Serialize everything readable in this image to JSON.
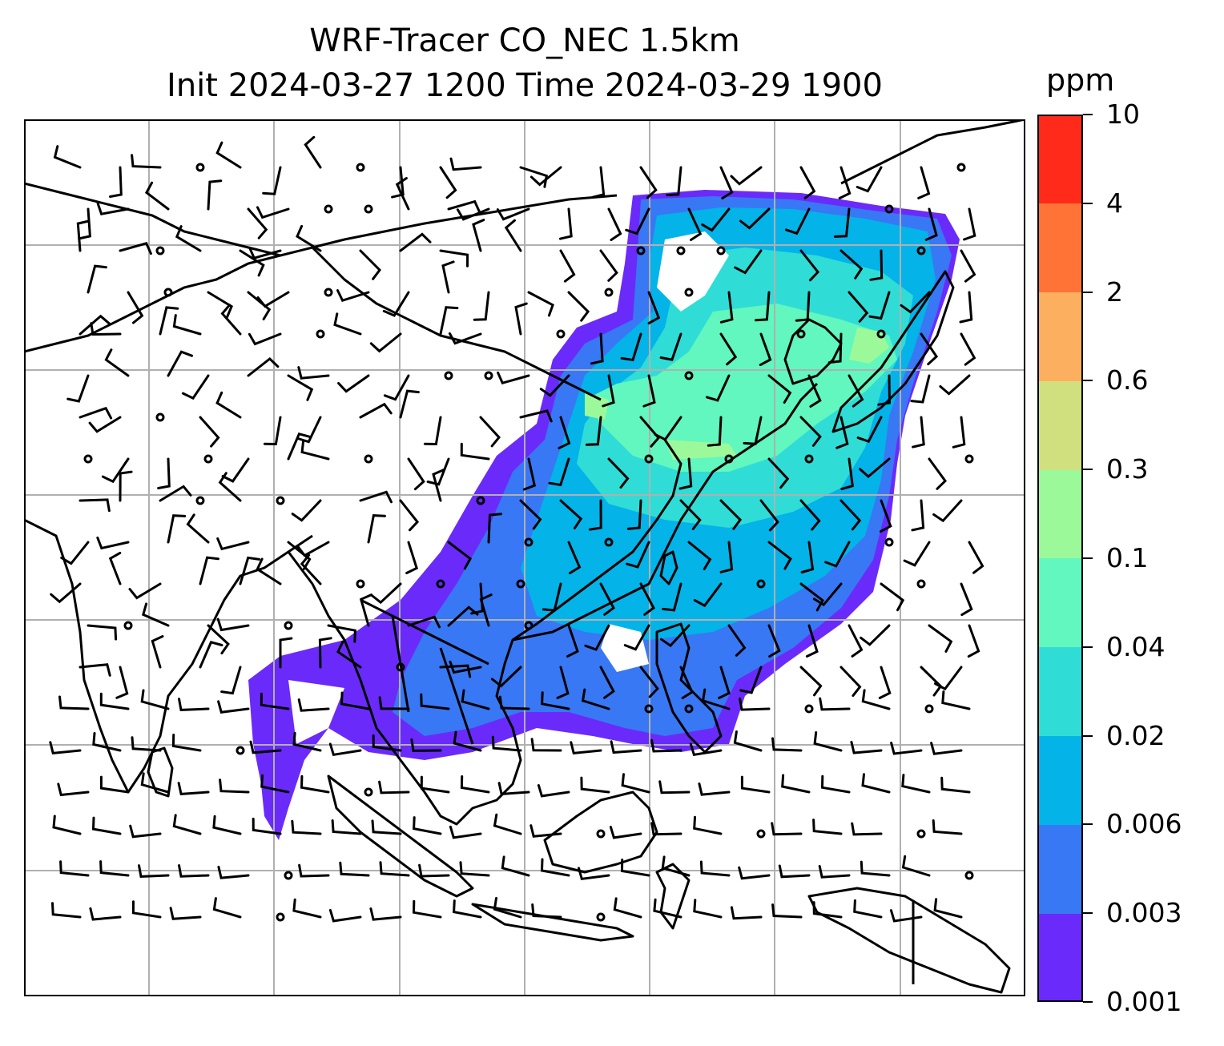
{
  "title": {
    "line1": "WRF-Tracer CO_NEC 1.5km",
    "line2": "Init 2024-03-27 1200 Time 2024-03-29 1900"
  },
  "colorbar": {
    "unit": "ppm",
    "levels": [
      "0.001",
      "0.003",
      "0.006",
      "0.02",
      "0.04",
      "0.1",
      "0.3",
      "0.6",
      "2",
      "4",
      "10"
    ],
    "colors": [
      "#6a2bfa",
      "#3878f4",
      "#04b3e8",
      "#2fddd6",
      "#61f7be",
      "#9cf99a",
      "#d0e07e",
      "#fcaf5e",
      "#ff7337",
      "#ff2a19"
    ]
  },
  "map": {
    "variable": "CO_NEC tracer",
    "coastline_color": "#000000",
    "grid_color": "#b0b0b0",
    "wind_symbol": "wind-barbs"
  }
}
